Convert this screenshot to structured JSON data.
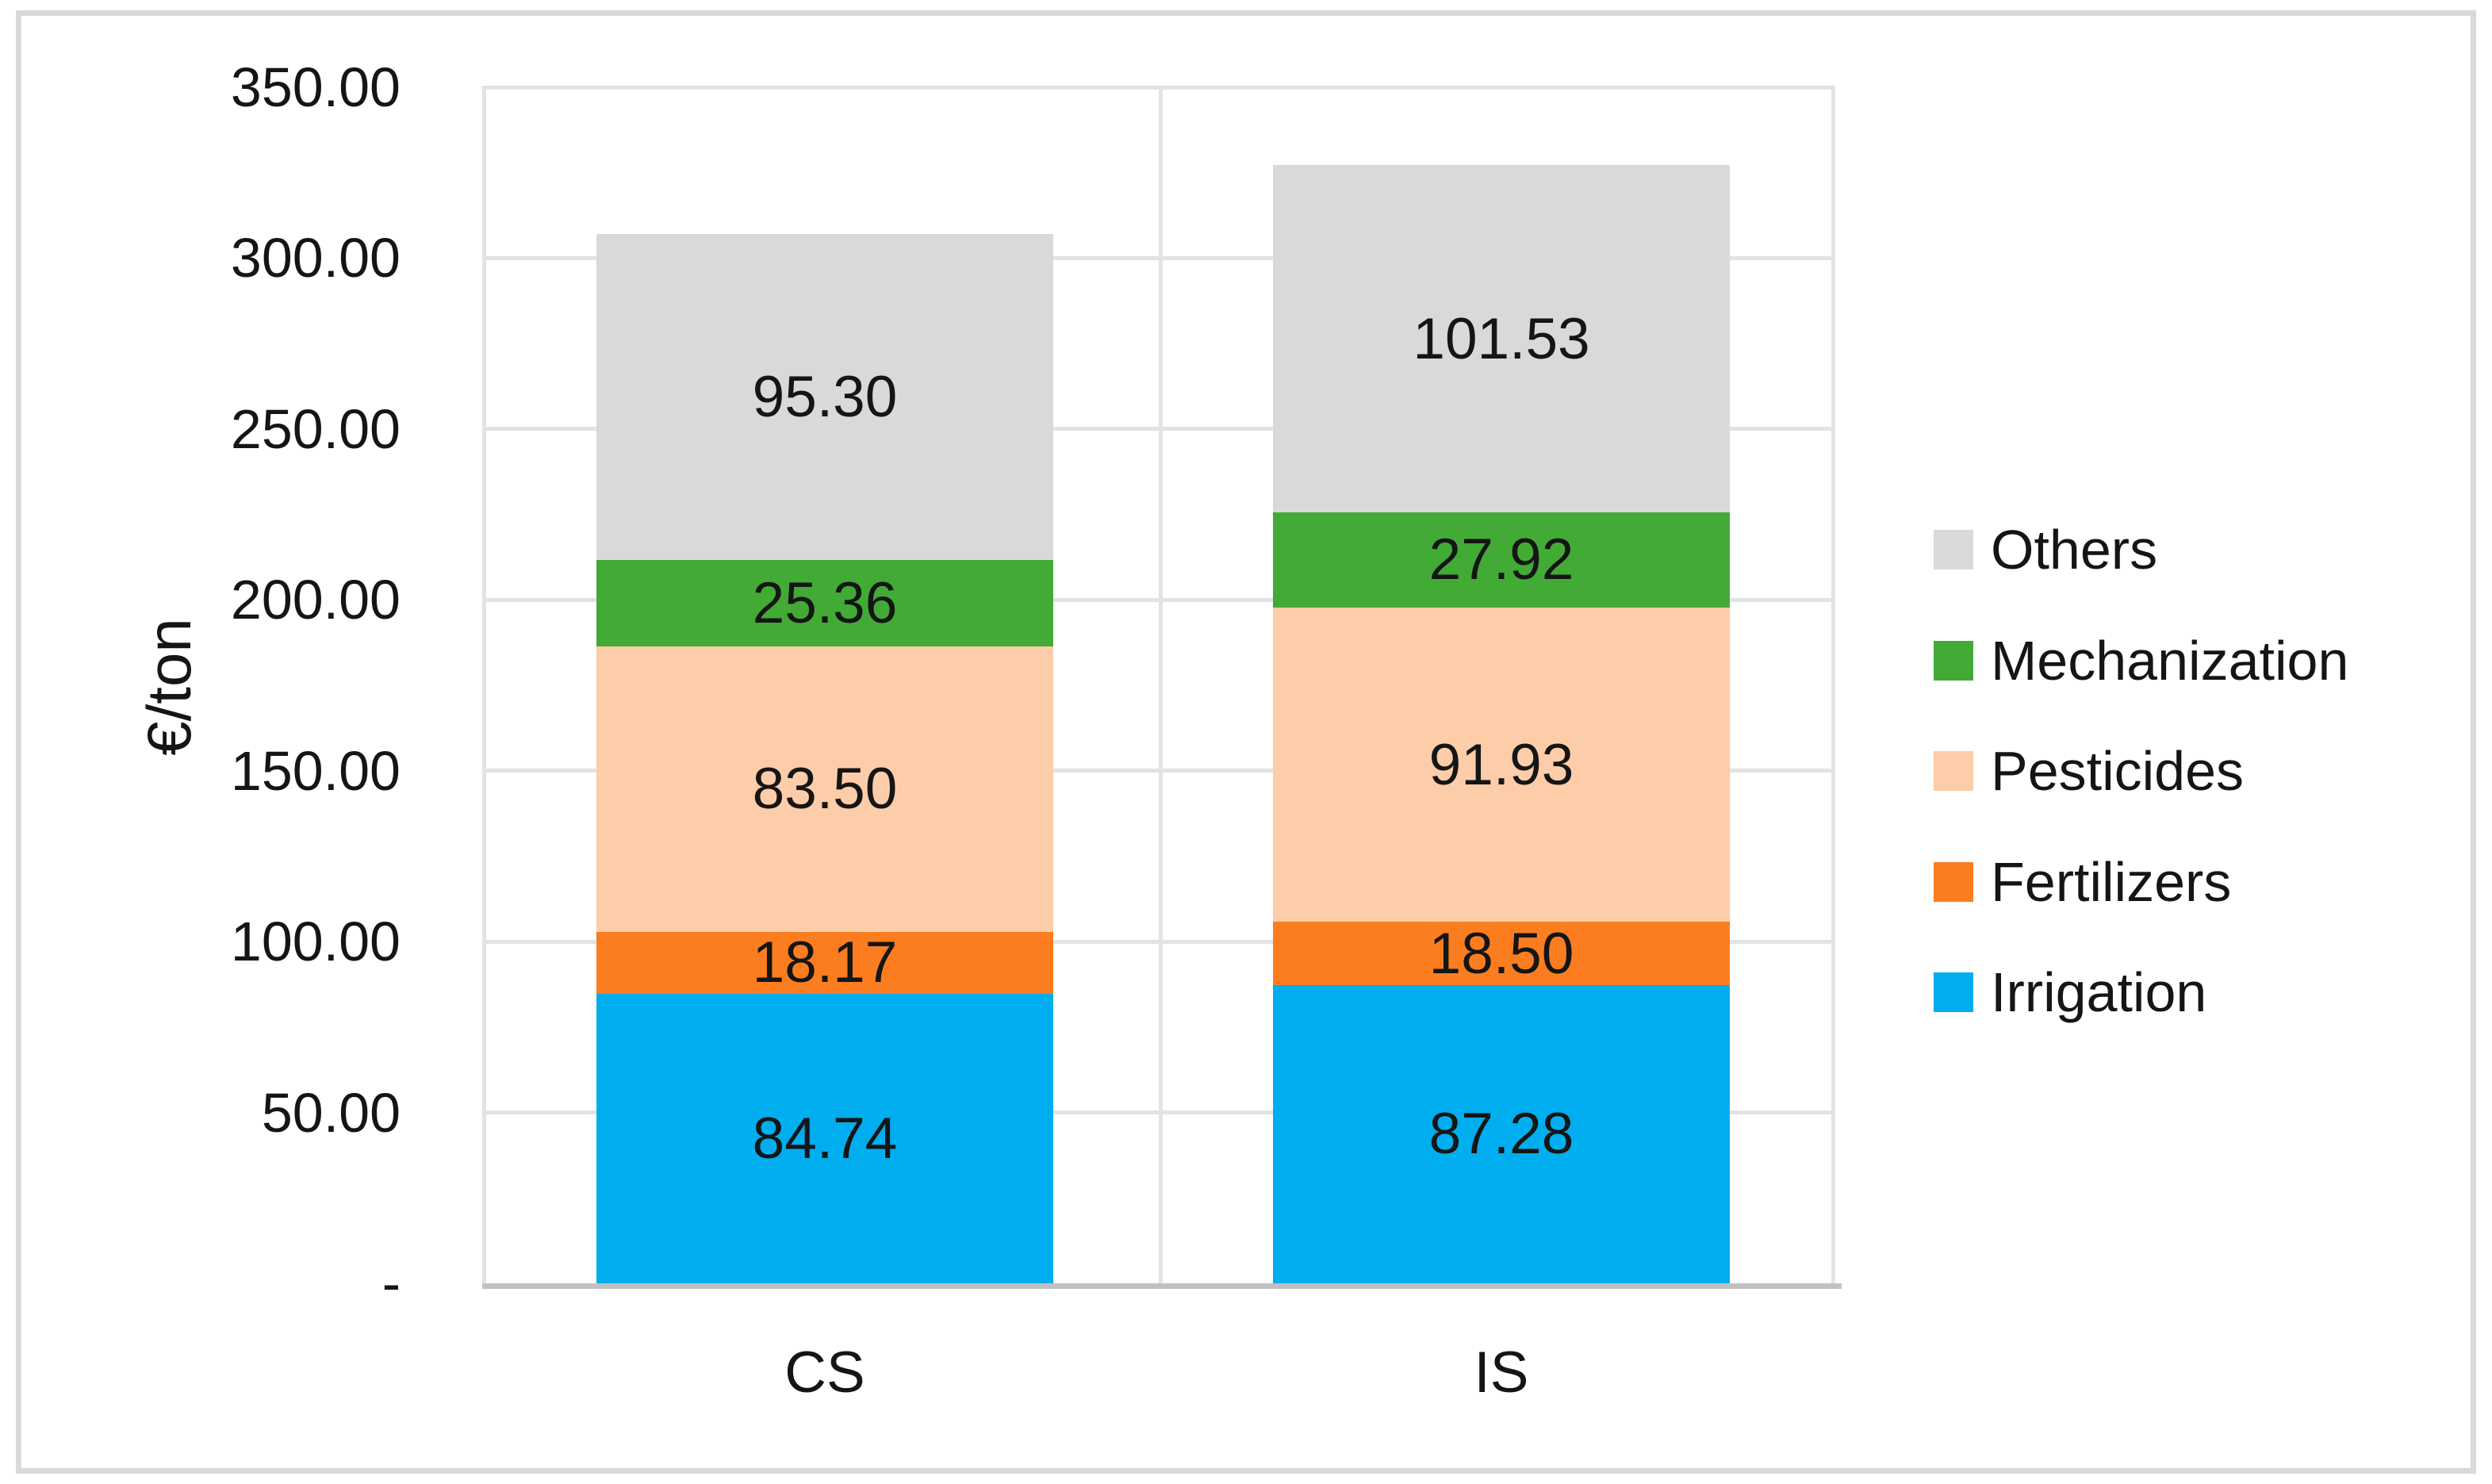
{
  "chart_data": {
    "type": "bar",
    "stacked": true,
    "title": "",
    "categories": [
      "CS",
      "IS"
    ],
    "series": [
      {
        "name": "Irrigation",
        "color": "#00AEEF",
        "values": [
          84.74,
          87.28
        ],
        "labels": [
          "84.74",
          "87.28"
        ]
      },
      {
        "name": "Fertilizers",
        "color": "#FB7D20",
        "values": [
          18.17,
          18.5
        ],
        "labels": [
          "18.17",
          "18.50"
        ]
      },
      {
        "name": "Pesticides",
        "color": "#FDCDA9",
        "values": [
          83.5,
          91.93
        ],
        "labels": [
          "83.50",
          "91.93"
        ]
      },
      {
        "name": "Mechanization",
        "color": "#41AB35",
        "values": [
          25.36,
          27.92
        ],
        "labels": [
          "25.36",
          "27.92"
        ]
      },
      {
        "name": "Others",
        "color": "#D9D9D9",
        "values": [
          95.3,
          101.53
        ],
        "labels": [
          "95.30",
          "101.53"
        ]
      }
    ],
    "ylabel": "€/ton",
    "ylim": [
      0,
      350
    ],
    "ytick_step": 50,
    "ytick_labels": [
      "350.00",
      "300.00",
      "250.00",
      "200.00",
      "150.00",
      "100.00",
      "50.00",
      "-"
    ],
    "grid": true,
    "legend_position": "right",
    "legend": [
      "Others",
      "Mechanization",
      "Pesticides",
      "Fertilizers",
      "Irrigation"
    ],
    "data_label_format": "0.00"
  },
  "colors": {
    "gridline": "#E3E3E3",
    "axis_line": "#C1C1C1",
    "chart_border": "#D9D9D9",
    "text": "#151515",
    "background": "#FFFFFF"
  }
}
